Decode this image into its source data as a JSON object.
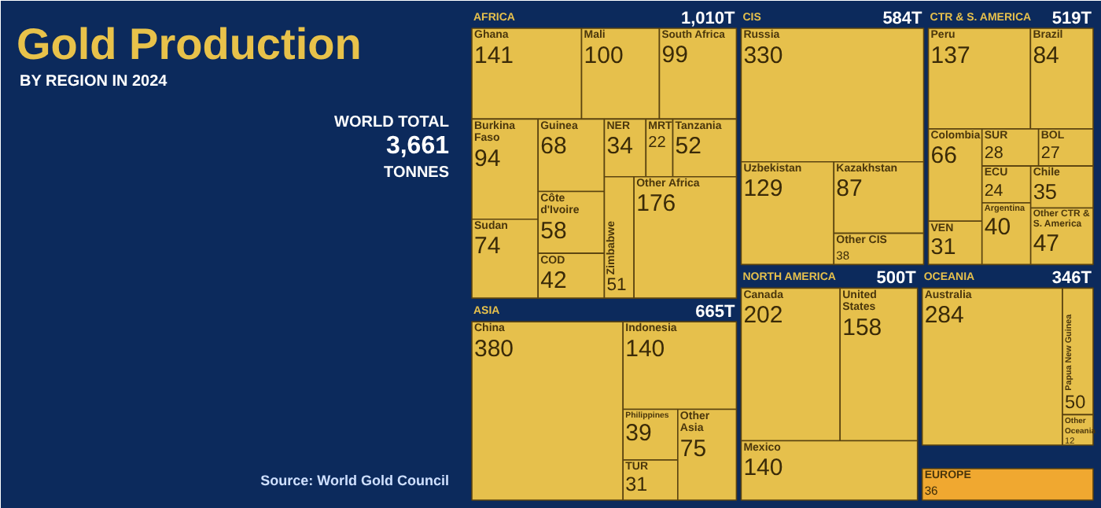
{
  "chart_data": {
    "type": "other",
    "title": "Gold Production",
    "subtitle": "BY REGION IN 2024",
    "data_labels": true,
    "annotations": [
      "WORLD TOTAL",
      "3,661",
      "TONNES",
      "Source: World Gold Council",
      "1,010T",
      "665T",
      "584T",
      "519T",
      "500T",
      "346T"
    ],
    "categories": [
      "Ghana",
      "Mali",
      "South Africa",
      "Burkina Faso",
      "Sudan",
      "Guinea",
      "Côte d'Ivoire",
      "COD",
      "NER",
      "MRT",
      "Tanzania",
      "Zimbabwe",
      "Other Africa",
      "China",
      "Indonesia",
      "Philippines",
      "TUR",
      "Other Asia",
      "Russia",
      "Uzbekistan",
      "Kazakhstan",
      "Other CIS",
      "Peru",
      "Brazil",
      "Colombia",
      "VEN",
      "SUR",
      "BOL",
      "ECU",
      "Argentina",
      "Chile",
      "Other CTR & S. America",
      "Canada",
      "United States",
      "Mexico",
      "Australia",
      "Papua New Guinea",
      "Other Oceania",
      "EUROPE"
    ],
    "series": [
      {
        "name": "AFRICA",
        "color": "#e6c04c",
        "values": [
          141,
          100,
          99,
          94,
          74,
          68,
          58,
          42,
          34,
          22,
          52,
          51,
          176,
          null,
          null,
          null,
          null,
          null,
          null,
          null,
          null,
          null,
          null,
          null,
          null,
          null,
          null,
          null,
          null,
          null,
          null,
          null,
          null,
          null,
          null,
          null,
          null,
          null,
          null
        ]
      },
      {
        "name": "ASIA",
        "color": "#e6c04c",
        "values": [
          null,
          null,
          null,
          null,
          null,
          null,
          null,
          null,
          null,
          null,
          null,
          null,
          null,
          380,
          140,
          39,
          31,
          75,
          null,
          null,
          null,
          null,
          null,
          null,
          null,
          null,
          null,
          null,
          null,
          null,
          null,
          null,
          null,
          null,
          null,
          null,
          null,
          null,
          null
        ]
      },
      {
        "name": "CIS",
        "color": "#e6c04c",
        "values": [
          null,
          null,
          null,
          null,
          null,
          null,
          null,
          null,
          null,
          null,
          null,
          null,
          null,
          null,
          null,
          null,
          null,
          null,
          330,
          129,
          87,
          38,
          null,
          null,
          null,
          null,
          null,
          null,
          null,
          null,
          null,
          null,
          null,
          null,
          null,
          null,
          null,
          null,
          null
        ]
      },
      {
        "name": "CTR & S. AMERICA",
        "color": "#e6c04c",
        "values": [
          null,
          null,
          null,
          null,
          null,
          null,
          null,
          null,
          null,
          null,
          null,
          null,
          null,
          null,
          null,
          null,
          null,
          null,
          null,
          null,
          null,
          null,
          137,
          84,
          66,
          31,
          28,
          27,
          24,
          40,
          35,
          47,
          null,
          null,
          null,
          null,
          null,
          null,
          null
        ]
      },
      {
        "name": "NORTH AMERICA",
        "color": "#e6c04c",
        "values": [
          null,
          null,
          null,
          null,
          null,
          null,
          null,
          null,
          null,
          null,
          null,
          null,
          null,
          null,
          null,
          null,
          null,
          null,
          null,
          null,
          null,
          null,
          null,
          null,
          null,
          null,
          null,
          null,
          null,
          null,
          null,
          null,
          202,
          158,
          140,
          null,
          null,
          null,
          null
        ]
      },
      {
        "name": "OCEANIA",
        "color": "#e6c04c",
        "values": [
          null,
          null,
          null,
          null,
          null,
          null,
          null,
          null,
          null,
          null,
          null,
          null,
          null,
          null,
          null,
          null,
          null,
          null,
          null,
          null,
          null,
          null,
          null,
          null,
          null,
          null,
          null,
          null,
          null,
          null,
          null,
          null,
          null,
          null,
          null,
          284,
          50,
          12,
          null
        ]
      },
      {
        "color": "#f0a830",
        "values": [
          null,
          null,
          null,
          null,
          null,
          null,
          null,
          null,
          null,
          null,
          null,
          null,
          null,
          null,
          null,
          null,
          null,
          null,
          null,
          null,
          null,
          null,
          null,
          null,
          null,
          null,
          null,
          null,
          null,
          null,
          null,
          null,
          null,
          null,
          null,
          null,
          null,
          null,
          36
        ]
      }
    ]
  }
}
